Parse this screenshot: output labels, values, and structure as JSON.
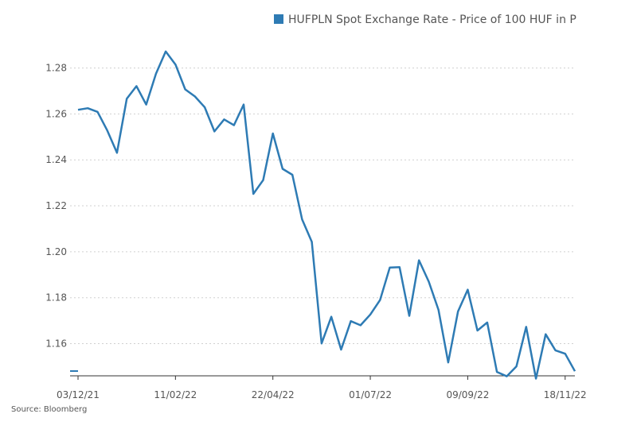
{
  "chart_data": {
    "type": "line",
    "title": "",
    "xlabel": "",
    "ylabel": "",
    "ylim": [
      1.146,
      1.293
    ],
    "y_ticks": [
      "1.16",
      "1.18",
      "1.20",
      "1.22",
      "1.24",
      "1.26",
      "1.28"
    ],
    "y_tick_values": [
      1.16,
      1.18,
      1.2,
      1.22,
      1.24,
      1.26,
      1.28
    ],
    "x_tick_labels": [
      "03/12/21",
      "11/02/22",
      "22/04/22",
      "01/07/22",
      "09/09/22",
      "18/11/22"
    ],
    "x_tick_indices": [
      0,
      10,
      20,
      30,
      40,
      50
    ],
    "grid": "horizontal-dotted",
    "legend_position": "top-right",
    "line_color": "#2e7bb4",
    "series": [
      {
        "name": "HUFPLN Spot Exchange Rate - Price of 100 HUF in P",
        "values": [
          1.2618,
          1.2625,
          1.2609,
          1.2528,
          1.2431,
          1.2666,
          1.2721,
          1.2641,
          1.2775,
          1.2872,
          1.2815,
          1.2707,
          1.2676,
          1.2629,
          1.2524,
          1.2576,
          1.2551,
          1.2641,
          1.2252,
          1.2312,
          1.2515,
          1.2361,
          1.2335,
          1.2141,
          1.2043,
          1.1601,
          1.1717,
          1.1574,
          1.1698,
          1.168,
          1.1727,
          1.179,
          1.1931,
          1.1933,
          1.1721,
          1.1963,
          1.187,
          1.1747,
          1.1518,
          1.174,
          1.1835,
          1.1657,
          1.1692,
          1.1477,
          1.1458,
          1.1501,
          1.1673,
          1.1448,
          1.1641,
          1.1571,
          1.1556,
          1.148
        ]
      }
    ]
  },
  "source": "Source: Bloomberg"
}
